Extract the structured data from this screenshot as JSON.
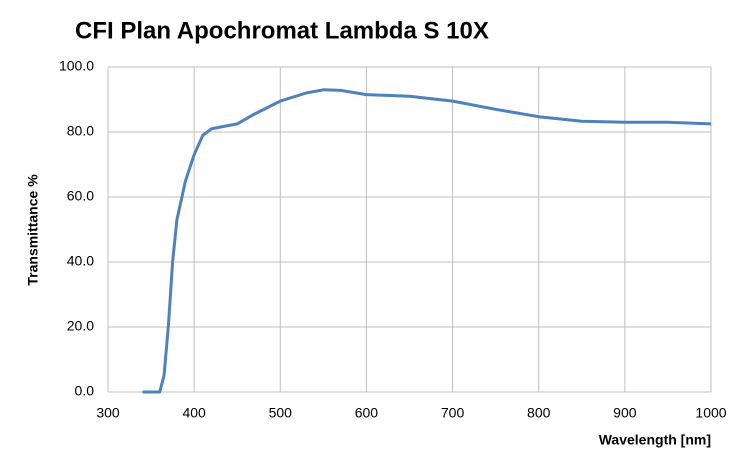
{
  "chart_data": {
    "type": "line",
    "title": "CFI Plan Apochromat  Lambda S 10X",
    "x_label": "Wavelength [nm]",
    "y_label": "Transmittance %",
    "x": [
      340,
      350,
      360,
      365,
      370,
      375,
      380,
      390,
      400,
      410,
      420,
      430,
      450,
      470,
      500,
      530,
      550,
      570,
      600,
      650,
      700,
      750,
      800,
      850,
      900,
      950,
      1000
    ],
    "series": [
      {
        "name": "Transmittance",
        "color": "#4f81bd",
        "values": [
          0,
          0,
          0,
          5,
          20,
          40,
          53,
          65,
          73,
          79,
          81,
          81.5,
          82.5,
          85.5,
          89.5,
          92,
          93,
          92.8,
          91.5,
          91,
          89.5,
          87,
          84.7,
          83.3,
          83,
          83,
          82.5
        ]
      }
    ],
    "xlim": [
      300,
      1000
    ],
    "xticks": [
      300,
      400,
      500,
      600,
      700,
      800,
      900,
      1000
    ],
    "ylim": [
      0,
      100
    ],
    "yticks": [
      {
        "value": 0,
        "label": "0.0"
      },
      {
        "value": 20,
        "label": "20.0"
      },
      {
        "value": 40,
        "label": "40.0"
      },
      {
        "value": 60,
        "label": "60.0"
      },
      {
        "value": 80,
        "label": "80.0"
      },
      {
        "value": 100,
        "label": "100.0"
      }
    ],
    "grid": true
  }
}
